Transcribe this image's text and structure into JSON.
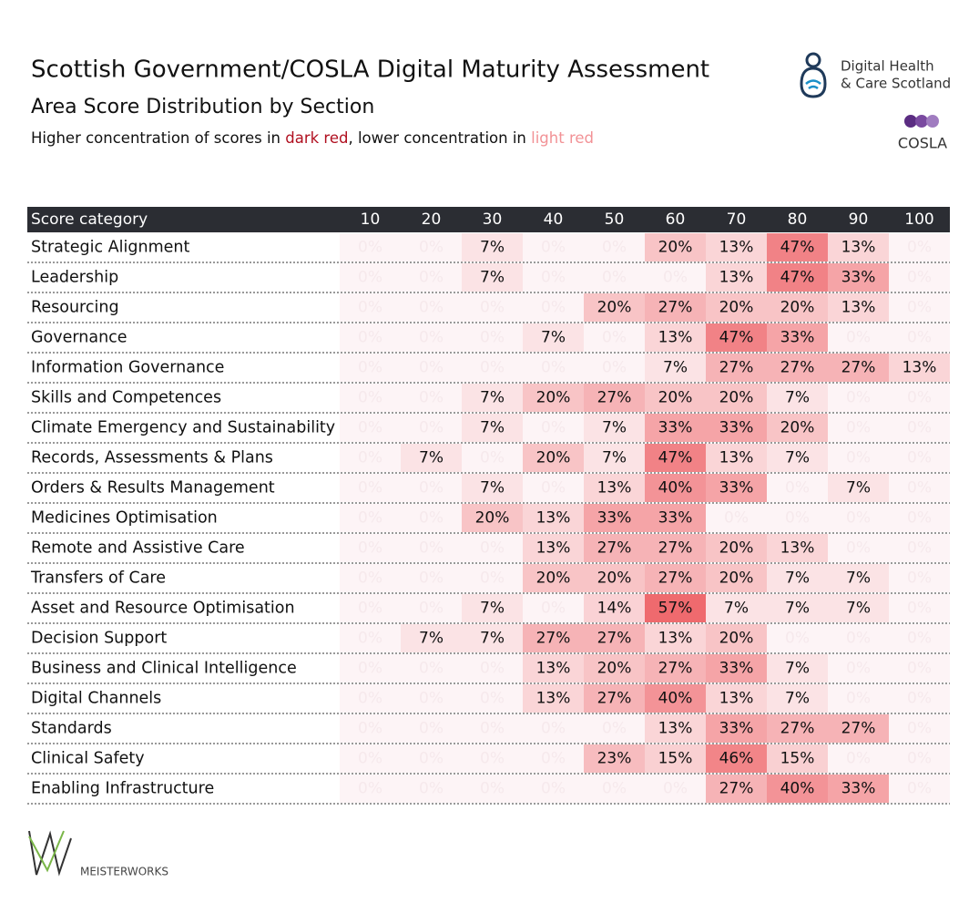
{
  "chart_data": {
    "type": "heatmap",
    "title": "Scottish Government/COSLA Digital Maturity Assessment",
    "subtitle": "Area Score Distribution by Section",
    "note": [
      "Higher concentration of scores in ",
      "dark red",
      ", lower concentration in ",
      "light red"
    ],
    "row_header": "Score category",
    "x": [
      10,
      20,
      30,
      40,
      50,
      60,
      70,
      80,
      90,
      100
    ],
    "categories": [
      "Strategic Alignment",
      "Leadership",
      "Resourcing",
      "Governance",
      "Information Governance",
      "Skills and Competences",
      "Climate Emergency and Sustainability",
      "Records, Assessments & Plans",
      "Orders & Results Management",
      "Medicines Optimisation",
      "Remote and Assistive Care",
      "Transfers of Care",
      "Asset and Resource Optimisation",
      "Decision Support",
      "Business and Clinical Intelligence",
      "Digital Channels",
      "Standards",
      "Clinical Safety",
      "Enabling Infrastructure"
    ],
    "values": [
      [
        0,
        0,
        7,
        0,
        0,
        20,
        13,
        47,
        13,
        0
      ],
      [
        0,
        0,
        7,
        0,
        0,
        0,
        13,
        47,
        33,
        0
      ],
      [
        0,
        0,
        0,
        0,
        20,
        27,
        20,
        20,
        13,
        0
      ],
      [
        0,
        0,
        0,
        7,
        0,
        13,
        47,
        33,
        0,
        0
      ],
      [
        0,
        0,
        0,
        0,
        0,
        7,
        27,
        27,
        27,
        13
      ],
      [
        0,
        0,
        7,
        20,
        27,
        20,
        20,
        7,
        0,
        0
      ],
      [
        0,
        0,
        7,
        0,
        7,
        33,
        33,
        20,
        0,
        0
      ],
      [
        0,
        7,
        0,
        20,
        7,
        47,
        13,
        7,
        0,
        0
      ],
      [
        0,
        0,
        7,
        0,
        13,
        40,
        33,
        0,
        7,
        0
      ],
      [
        0,
        0,
        20,
        13,
        33,
        33,
        0,
        0,
        0,
        0
      ],
      [
        0,
        0,
        0,
        13,
        27,
        27,
        20,
        13,
        0,
        0
      ],
      [
        0,
        0,
        0,
        20,
        20,
        27,
        20,
        7,
        7,
        0
      ],
      [
        0,
        0,
        7,
        0,
        14,
        57,
        7,
        7,
        7,
        0
      ],
      [
        0,
        7,
        7,
        27,
        27,
        13,
        20,
        0,
        0,
        0
      ],
      [
        0,
        0,
        0,
        13,
        20,
        27,
        33,
        7,
        0,
        0
      ],
      [
        0,
        0,
        0,
        13,
        27,
        40,
        13,
        7,
        0,
        0
      ],
      [
        0,
        0,
        0,
        0,
        0,
        13,
        33,
        27,
        27,
        0
      ],
      [
        0,
        0,
        0,
        0,
        23,
        15,
        46,
        15,
        0,
        0
      ],
      [
        0,
        0,
        0,
        0,
        0,
        0,
        27,
        40,
        33,
        0
      ]
    ],
    "value_labels": [
      [
        "0%",
        "0%",
        "7%",
        "0%",
        "0%",
        "20%",
        "13%",
        "47%",
        "13%",
        "0%"
      ],
      [
        "0%",
        "0%",
        "7%",
        "0%",
        "0%",
        "0%",
        "13%",
        "47%",
        "33%",
        "0%"
      ],
      [
        "0%",
        "0%",
        "0%",
        "0%",
        "20%",
        "27%",
        "20%",
        "20%",
        "13%",
        "0%"
      ],
      [
        "0%",
        "0%",
        "0%",
        "7%",
        "0%",
        "13%",
        "47%",
        "33%",
        "0%",
        "0%"
      ],
      [
        "0%",
        "0%",
        "0%",
        "0%",
        "0%",
        "7%",
        "27%",
        "27%",
        "27%",
        "13%"
      ],
      [
        "0%",
        "0%",
        "7%",
        "20%",
        "27%",
        "20%",
        "20%",
        "7%",
        "0%",
        "0%"
      ],
      [
        "0%",
        "0%",
        "7%",
        "0%",
        "7%",
        "33%",
        "33%",
        "20%",
        "0%",
        "0%"
      ],
      [
        "0%",
        "7%",
        "0%",
        "20%",
        "7%",
        "47%",
        "13%",
        "7%",
        "0%",
        "0%"
      ],
      [
        "0%",
        "0%",
        "7%",
        "0%",
        "13%",
        "40%",
        "33%",
        "0%",
        "7%",
        "0%"
      ],
      [
        "0%",
        "0%",
        "20%",
        "13%",
        "33%",
        "33%",
        "0%",
        "0%",
        "0%",
        "0%"
      ],
      [
        "0%",
        "0%",
        "0%",
        "13%",
        "27%",
        "27%",
        "20%",
        "13%",
        "0%",
        "0%"
      ],
      [
        "0%",
        "0%",
        "0%",
        "20%",
        "20%",
        "27%",
        "20%",
        "7%",
        "7%",
        "0%"
      ],
      [
        "0%",
        "0%",
        "7%",
        "0%",
        "14%",
        "57%",
        "7%",
        "7%",
        "7%",
        "0%"
      ],
      [
        "0%",
        "7%",
        "7%",
        "27%",
        "27%",
        "13%",
        "20%",
        "0%",
        "0%",
        "0%"
      ],
      [
        "0%",
        "0%",
        "0%",
        "13%",
        "20%",
        "27%",
        "33%",
        "7%",
        "0%",
        "0%"
      ],
      [
        "0%",
        "0%",
        "0%",
        "13%",
        "27%",
        "40%",
        "13%",
        "7%",
        "0%",
        "0%"
      ],
      [
        "0%",
        "0%",
        "0%",
        "0%",
        "0%",
        "13%",
        "33%",
        "27%",
        "27%",
        "0%"
      ],
      [
        "0%",
        "0%",
        "0%",
        "0%",
        "23%",
        "15%",
        "46%",
        "15%",
        "0%",
        "0%"
      ],
      [
        "0%",
        "0%",
        "0%",
        "0%",
        "0%",
        "0%",
        "27%",
        "40%",
        "33%",
        "0%"
      ]
    ],
    "color_low": "#fdf4f6",
    "color_high": "#ef6a6e",
    "note_colors": [
      "#b01020",
      "#f29296"
    ]
  },
  "logos": {
    "dhcs": [
      "Digital Health",
      "& Care Scotland"
    ],
    "cosla": "COSLA",
    "maker": "MEISTERWORKS"
  }
}
